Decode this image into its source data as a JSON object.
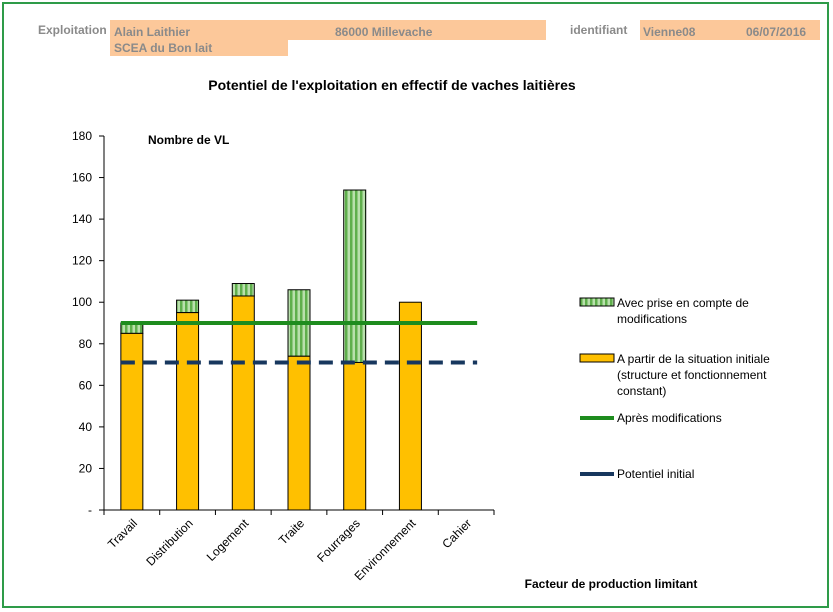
{
  "header": {
    "exploitation_label": "Exploitation",
    "farmer_name": "Alain Laithier",
    "postal_city": "86000 Millevache",
    "company": "SCEA du Bon lait",
    "identifiant_label": "identifiant",
    "identifiant_value": "Vienne08",
    "date": "06/07/2016"
  },
  "colors": {
    "frame": "#2e9b48",
    "header_band": "#fcc89a",
    "base_bar": "#ffc000",
    "modif_bar": "#8cc97e",
    "apres_line": "#1e8c1e",
    "initial_line": "#17375e"
  },
  "chart_data": {
    "type": "bar",
    "title": "Potentiel de l'exploitation en effectif de vaches laitières",
    "ylabel": "Nombre de VL",
    "xlabel": "Facteur de production limitant",
    "ylim": [
      0,
      180
    ],
    "yticks": [
      "-",
      "20",
      "40",
      "60",
      "80",
      "100",
      "120",
      "140",
      "160",
      "180"
    ],
    "categories": [
      "Travail",
      "Distribution",
      "Logement",
      "Traite",
      "Fourrages",
      "Environnement",
      "Cahier"
    ],
    "series": [
      {
        "name": "A partir de la situation initiale (structure et fonctionnement constant)",
        "kind": "bar",
        "values": [
          85,
          95,
          103,
          74,
          71,
          100,
          null
        ]
      },
      {
        "name": "Avec prise en compte de modifications",
        "kind": "bar-stacked",
        "values": [
          90,
          101,
          109,
          106,
          154,
          null,
          null
        ]
      },
      {
        "name": "Après modifications",
        "kind": "line",
        "value": 90
      },
      {
        "name": "Potentiel initial",
        "kind": "dashed-line",
        "value": 71
      }
    ],
    "legend_position": "right"
  }
}
